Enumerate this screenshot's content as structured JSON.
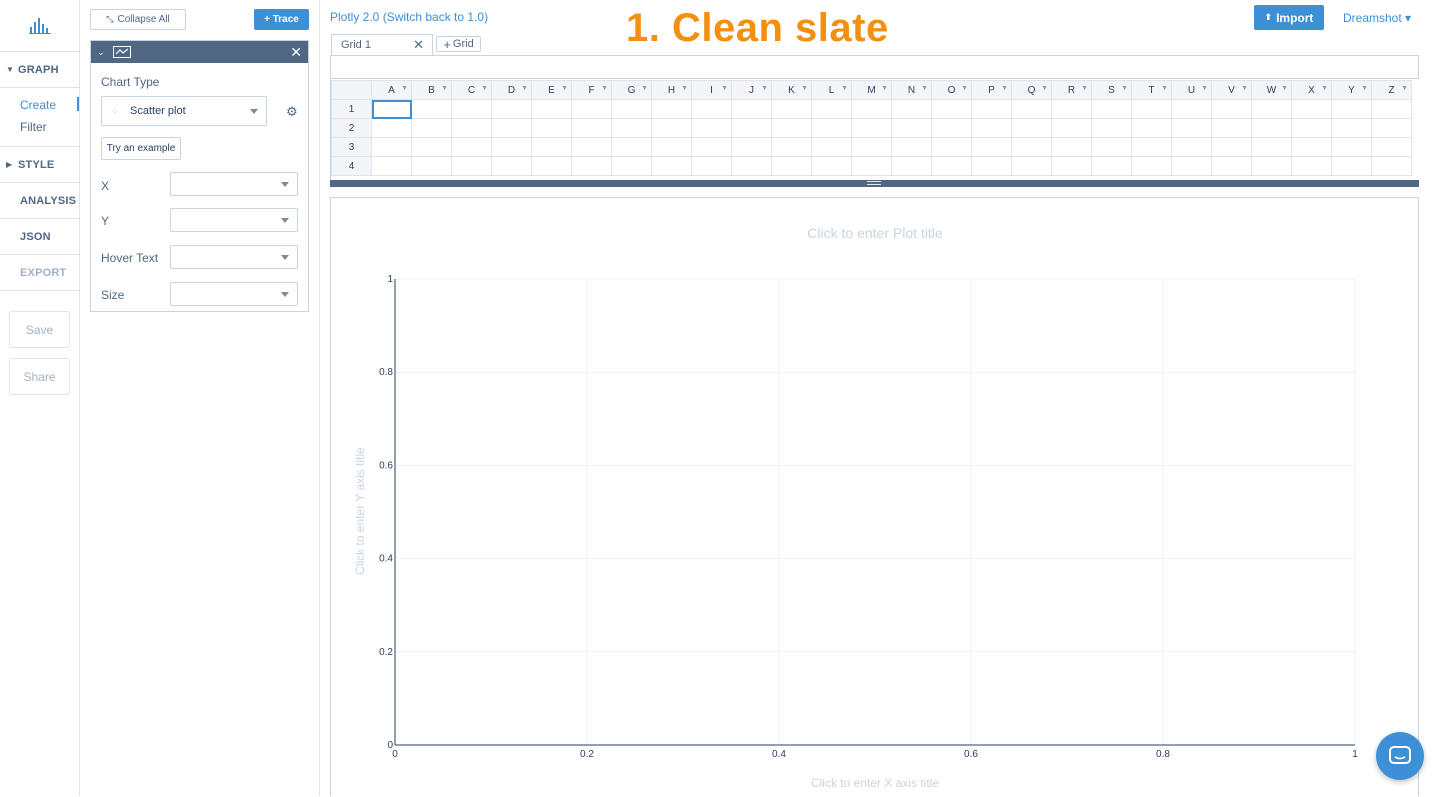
{
  "overlay_title": "1. Clean slate",
  "nav": {
    "graph_label": "GRAPH",
    "graph_items": [
      {
        "label": "Create",
        "active": true
      },
      {
        "label": "Filter",
        "active": false
      }
    ],
    "style_label": "STYLE",
    "analysis_label": "ANALYSIS",
    "json_label": "JSON",
    "export_label": "EXPORT",
    "save_label": "Save",
    "share_label": "Share"
  },
  "panel": {
    "collapse_label": "Collapse All",
    "trace_label": "+ Trace",
    "chart_type_label": "Chart Type",
    "chart_type_value": "Scatter plot",
    "try_example_label": "Try an example",
    "fields": [
      {
        "label": "X",
        "value": ""
      },
      {
        "label": "Y",
        "value": ""
      },
      {
        "label": "Hover Text",
        "value": ""
      },
      {
        "label": "Size",
        "value": ""
      }
    ]
  },
  "topbar": {
    "version_link": "Plotly 2.0 (Switch back to 1.0)",
    "import_label": "Import",
    "user_menu": "Dreamshot ▾"
  },
  "grid": {
    "tab_label": "Grid 1",
    "add_grid_label": "Grid",
    "columns": [
      "A",
      "B",
      "C",
      "D",
      "E",
      "F",
      "G",
      "H",
      "I",
      "J",
      "K",
      "L",
      "M",
      "N",
      "O",
      "P",
      "Q",
      "R",
      "S",
      "T",
      "U",
      "V",
      "W",
      "X",
      "Y",
      "Z"
    ],
    "rows": [
      "1",
      "2",
      "3",
      "4"
    ]
  },
  "plot": {
    "title_placeholder": "Click to enter Plot title",
    "xaxis_placeholder": "Click to enter X axis title",
    "yaxis_placeholder": "Click to enter Y axis title",
    "x_ticks": [
      "0",
      "0.2",
      "0.4",
      "0.6",
      "0.8",
      "1"
    ],
    "y_ticks": [
      "0",
      "0.2",
      "0.4",
      "0.6",
      "0.8",
      "1"
    ],
    "xlim": [
      0,
      1
    ],
    "ylim": [
      0,
      1
    ]
  },
  "colors": {
    "accent": "#3d8fd6",
    "overlay": "#f39012",
    "header_dark": "#506784"
  }
}
